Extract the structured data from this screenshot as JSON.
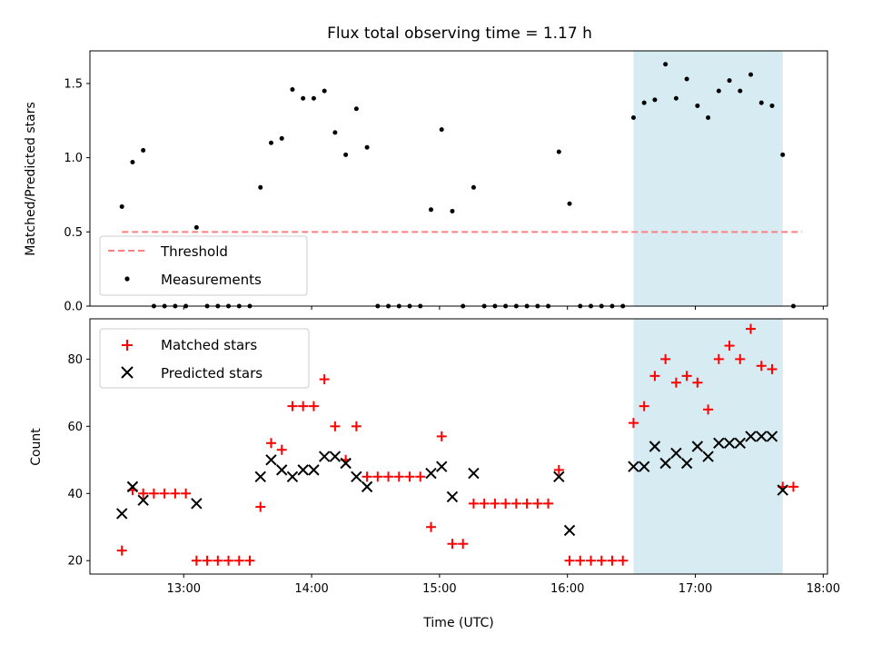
{
  "chart_data": [
    {
      "type": "scatter",
      "title": "Flux total observing time = 1.17 h",
      "xlabel": "",
      "ylabel": "Matched/Predicted stars",
      "xlim": [
        "12:16",
        "18:02"
      ],
      "ylim": [
        0,
        1.72
      ],
      "yticks": [
        "0.0",
        "0.5",
        "1.0",
        "1.5"
      ],
      "highlight_span": {
        "start": "16:31",
        "end": "17:41",
        "color": "#add8e6"
      },
      "threshold": {
        "name": "Threshold",
        "value": 0.5,
        "x_start": "12:31",
        "x_end": "17:50",
        "color": "#ff7f7f",
        "style": "dashed"
      },
      "series": [
        {
          "name": "Measurements",
          "marker": "dot",
          "color": "#000000",
          "points": [
            [
              "12:31",
              0.67
            ],
            [
              "12:36",
              0.97
            ],
            [
              "12:41",
              1.05
            ],
            [
              "12:46",
              0.0
            ],
            [
              "12:51",
              0.0
            ],
            [
              "12:56",
              0.0
            ],
            [
              "13:01",
              0.0
            ],
            [
              "13:06",
              0.53
            ],
            [
              "13:11",
              0.0
            ],
            [
              "13:16",
              0.0
            ],
            [
              "13:21",
              0.0
            ],
            [
              "13:26",
              0.0
            ],
            [
              "13:31",
              0.0
            ],
            [
              "13:36",
              0.8
            ],
            [
              "13:41",
              1.1
            ],
            [
              "13:46",
              1.13
            ],
            [
              "13:51",
              1.46
            ],
            [
              "13:56",
              1.4
            ],
            [
              "14:01",
              1.4
            ],
            [
              "14:06",
              1.45
            ],
            [
              "14:11",
              1.17
            ],
            [
              "14:16",
              1.02
            ],
            [
              "14:21",
              1.33
            ],
            [
              "14:26",
              1.07
            ],
            [
              "14:31",
              0.0
            ],
            [
              "14:36",
              0.0
            ],
            [
              "14:41",
              0.0
            ],
            [
              "14:46",
              0.0
            ],
            [
              "14:51",
              0.0
            ],
            [
              "14:56",
              0.65
            ],
            [
              "15:01",
              1.19
            ],
            [
              "15:06",
              0.64
            ],
            [
              "15:11",
              0.0
            ],
            [
              "15:16",
              0.8
            ],
            [
              "15:21",
              0.0
            ],
            [
              "15:26",
              0.0
            ],
            [
              "15:31",
              0.0
            ],
            [
              "15:36",
              0.0
            ],
            [
              "15:41",
              0.0
            ],
            [
              "15:46",
              0.0
            ],
            [
              "15:51",
              0.0
            ],
            [
              "15:56",
              1.04
            ],
            [
              "16:01",
              0.69
            ],
            [
              "16:06",
              0.0
            ],
            [
              "16:11",
              0.0
            ],
            [
              "16:16",
              0.0
            ],
            [
              "16:21",
              0.0
            ],
            [
              "16:26",
              0.0
            ],
            [
              "16:31",
              1.27
            ],
            [
              "16:36",
              1.37
            ],
            [
              "16:41",
              1.39
            ],
            [
              "16:46",
              1.63
            ],
            [
              "16:51",
              1.4
            ],
            [
              "16:56",
              1.53
            ],
            [
              "17:01",
              1.35
            ],
            [
              "17:06",
              1.27
            ],
            [
              "17:11",
              1.45
            ],
            [
              "17:16",
              1.52
            ],
            [
              "17:21",
              1.45
            ],
            [
              "17:26",
              1.56
            ],
            [
              "17:31",
              1.37
            ],
            [
              "17:36",
              1.35
            ],
            [
              "17:41",
              1.02
            ],
            [
              "17:46",
              0.0
            ]
          ]
        }
      ],
      "legend": {
        "placement": "lower-left",
        "entries": [
          "Threshold",
          "Measurements"
        ]
      },
      "grid": false
    },
    {
      "type": "scatter",
      "title": "",
      "xlabel": "Time (UTC)",
      "ylabel": "Count",
      "xlim": [
        "12:16",
        "18:02"
      ],
      "xticks": [
        "13:00",
        "14:00",
        "15:00",
        "16:00",
        "17:00",
        "18:00"
      ],
      "ylim": [
        16,
        92
      ],
      "yticks": [
        "20",
        "40",
        "60",
        "80"
      ],
      "highlight_span": {
        "start": "16:31",
        "end": "17:41",
        "color": "#add8e6"
      },
      "series": [
        {
          "name": "Matched stars",
          "marker": "plus",
          "color": "#ff0000",
          "points": [
            [
              "12:31",
              23
            ],
            [
              "12:36",
              41
            ],
            [
              "12:41",
              40
            ],
            [
              "12:46",
              40
            ],
            [
              "12:51",
              40
            ],
            [
              "12:56",
              40
            ],
            [
              "13:01",
              40
            ],
            [
              "13:06",
              20
            ],
            [
              "13:11",
              20
            ],
            [
              "13:16",
              20
            ],
            [
              "13:21",
              20
            ],
            [
              "13:26",
              20
            ],
            [
              "13:31",
              20
            ],
            [
              "13:36",
              36
            ],
            [
              "13:41",
              55
            ],
            [
              "13:46",
              53
            ],
            [
              "13:51",
              66
            ],
            [
              "13:56",
              66
            ],
            [
              "14:01",
              66
            ],
            [
              "14:06",
              74
            ],
            [
              "14:11",
              60
            ],
            [
              "14:16",
              50
            ],
            [
              "14:21",
              60
            ],
            [
              "14:26",
              45
            ],
            [
              "14:31",
              45
            ],
            [
              "14:36",
              45
            ],
            [
              "14:41",
              45
            ],
            [
              "14:46",
              45
            ],
            [
              "14:51",
              45
            ],
            [
              "14:56",
              30
            ],
            [
              "15:01",
              57
            ],
            [
              "15:06",
              25
            ],
            [
              "15:11",
              25
            ],
            [
              "15:16",
              37
            ],
            [
              "15:21",
              37
            ],
            [
              "15:26",
              37
            ],
            [
              "15:31",
              37
            ],
            [
              "15:36",
              37
            ],
            [
              "15:41",
              37
            ],
            [
              "15:46",
              37
            ],
            [
              "15:51",
              37
            ],
            [
              "15:56",
              47
            ],
            [
              "16:01",
              20
            ],
            [
              "16:06",
              20
            ],
            [
              "16:11",
              20
            ],
            [
              "16:16",
              20
            ],
            [
              "16:21",
              20
            ],
            [
              "16:26",
              20
            ],
            [
              "16:31",
              61
            ],
            [
              "16:36",
              66
            ],
            [
              "16:41",
              75
            ],
            [
              "16:46",
              80
            ],
            [
              "16:51",
              73
            ],
            [
              "16:56",
              75
            ],
            [
              "17:01",
              73
            ],
            [
              "17:06",
              65
            ],
            [
              "17:11",
              80
            ],
            [
              "17:16",
              84
            ],
            [
              "17:21",
              80
            ],
            [
              "17:26",
              89
            ],
            [
              "17:31",
              78
            ],
            [
              "17:36",
              77
            ],
            [
              "17:41",
              42
            ],
            [
              "17:46",
              42
            ]
          ]
        },
        {
          "name": "Predicted stars",
          "marker": "x",
          "color": "#000000",
          "points": [
            [
              "12:31",
              34
            ],
            [
              "12:36",
              42
            ],
            [
              "12:41",
              38
            ],
            [
              "13:06",
              37
            ],
            [
              "13:36",
              45
            ],
            [
              "13:41",
              50
            ],
            [
              "13:46",
              47
            ],
            [
              "13:51",
              45
            ],
            [
              "13:56",
              47
            ],
            [
              "14:01",
              47
            ],
            [
              "14:06",
              51
            ],
            [
              "14:11",
              51
            ],
            [
              "14:16",
              49
            ],
            [
              "14:21",
              45
            ],
            [
              "14:26",
              42
            ],
            [
              "14:56",
              46
            ],
            [
              "15:01",
              48
            ],
            [
              "15:06",
              39
            ],
            [
              "15:16",
              46
            ],
            [
              "15:56",
              45
            ],
            [
              "16:01",
              29
            ],
            [
              "16:31",
              48
            ],
            [
              "16:36",
              48
            ],
            [
              "16:41",
              54
            ],
            [
              "16:46",
              49
            ],
            [
              "16:51",
              52
            ],
            [
              "16:56",
              49
            ],
            [
              "17:01",
              54
            ],
            [
              "17:06",
              51
            ],
            [
              "17:11",
              55
            ],
            [
              "17:16",
              55
            ],
            [
              "17:21",
              55
            ],
            [
              "17:26",
              57
            ],
            [
              "17:31",
              57
            ],
            [
              "17:36",
              57
            ],
            [
              "17:41",
              41
            ]
          ]
        }
      ],
      "legend": {
        "placement": "upper-left",
        "entries": [
          "Matched stars",
          "Predicted stars"
        ]
      },
      "grid": false
    }
  ]
}
